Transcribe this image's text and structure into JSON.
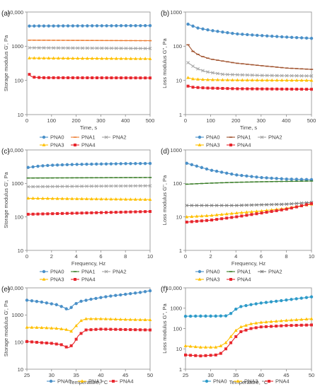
{
  "chart_data": [
    {
      "panel_label": "(a)",
      "type": "line",
      "xlabel": "Time, s",
      "ylabel": "Storage modulus G', Pa",
      "xlim": [
        0,
        500
      ],
      "ylim": [
        10,
        10000
      ],
      "yscale": "log",
      "xticks": [
        "0",
        "100",
        "200",
        "300",
        "400",
        "500"
      ],
      "yticks": [
        "10",
        "100",
        "1000",
        "10,000"
      ],
      "legend_placement": "bottom",
      "series": [
        {
          "name": "PNA0",
          "x": [
            10,
            500
          ],
          "y": [
            3900,
            4000
          ],
          "color": "#4a90c8",
          "marker": "circle"
        },
        {
          "name": "PNA1",
          "x": [
            10,
            500
          ],
          "y": [
            1500,
            1450
          ],
          "color": "#ed7d31",
          "marker": "dash"
        },
        {
          "name": "PNA2",
          "x": [
            10,
            500
          ],
          "y": [
            900,
            860
          ],
          "color": "#a5a5a5",
          "marker": "cross"
        },
        {
          "name": "PNA3",
          "x": [
            10,
            500
          ],
          "y": [
            450,
            430
          ],
          "color": "#ffc000",
          "marker": "triangle"
        },
        {
          "name": "PNA4",
          "x": [
            10,
            20,
            60,
            500
          ],
          "y": [
            150,
            125,
            120,
            118
          ],
          "color": "#e8262d",
          "marker": "square"
        }
      ]
    },
    {
      "panel_label": "(b)",
      "type": "line",
      "xlabel": "Time, s",
      "ylabel": "Loss modulus G'', Pa",
      "xlim": [
        0,
        500
      ],
      "ylim": [
        1,
        1000
      ],
      "yscale": "log",
      "xticks": [
        "0",
        "100",
        "200",
        "300",
        "400",
        "500"
      ],
      "yticks": [
        "1",
        "10",
        "100",
        "1000"
      ],
      "legend_placement": "bottom",
      "series": [
        {
          "name": "PNA0",
          "x": [
            10,
            50,
            100,
            200,
            300,
            400,
            500
          ],
          "y": [
            440,
            340,
            290,
            230,
            205,
            185,
            170
          ],
          "color": "#4a90c8",
          "marker": "circle"
        },
        {
          "name": "PNA1",
          "x": [
            10,
            30,
            60,
            100,
            200,
            300,
            400,
            500
          ],
          "y": [
            110,
            70,
            52,
            42,
            32,
            27,
            23,
            21
          ],
          "color": "#a0522d",
          "marker": "dash"
        },
        {
          "name": "PNA2",
          "x": [
            10,
            40,
            80,
            150,
            300,
            500
          ],
          "y": [
            33,
            23,
            18,
            15,
            14,
            13.5
          ],
          "color": "#a5a5a5",
          "marker": "cross"
        },
        {
          "name": "PNA3",
          "x": [
            10,
            30,
            80,
            200,
            500
          ],
          "y": [
            12,
            11,
            10.5,
            10.2,
            10
          ],
          "color": "#ffc000",
          "marker": "triangle"
        },
        {
          "name": "PNA4",
          "x": [
            10,
            30,
            80,
            200,
            500
          ],
          "y": [
            6.8,
            6.3,
            6,
            5.7,
            5.5
          ],
          "color": "#e8262d",
          "marker": "square"
        }
      ]
    },
    {
      "panel_label": "(c)",
      "type": "line",
      "xlabel": "Frequency, Hz",
      "ylabel": "Storage modulus G', Pa",
      "xlim": [
        0,
        10
      ],
      "ylim": [
        10,
        10000
      ],
      "yscale": "log",
      "xticks": [
        "0",
        "2",
        "4",
        "6",
        "8",
        "10"
      ],
      "yticks": [
        "10",
        "100",
        "1000",
        "10,000"
      ],
      "legend_placement": "bottom",
      "series": [
        {
          "name": "PNA0",
          "x": [
            0.1,
            1,
            2,
            4,
            6,
            8,
            10
          ],
          "y": [
            3000,
            3300,
            3500,
            3700,
            3800,
            3900,
            3950
          ],
          "color": "#4a90c8",
          "marker": "circle"
        },
        {
          "name": "PNA1",
          "x": [
            0.1,
            10
          ],
          "y": [
            1450,
            1500
          ],
          "color": "#3a7d28",
          "marker": "dash"
        },
        {
          "name": "PNA2",
          "x": [
            0.1,
            10
          ],
          "y": [
            800,
            850
          ],
          "color": "#a5a5a5",
          "marker": "cross"
        },
        {
          "name": "PNA3",
          "x": [
            0.1,
            10
          ],
          "y": [
            360,
            330
          ],
          "color": "#ffc000",
          "marker": "triangle"
        },
        {
          "name": "PNA4",
          "x": [
            0.1,
            10
          ],
          "y": [
            120,
            145
          ],
          "color": "#e8262d",
          "marker": "square"
        }
      ]
    },
    {
      "panel_label": "(d)",
      "type": "line",
      "xlabel": "Frequency, Hz",
      "ylabel": "Loss modulus G'', Pa",
      "xlim": [
        0,
        10
      ],
      "ylim": [
        1,
        1000
      ],
      "yscale": "log",
      "xticks": [
        "0",
        "2",
        "4",
        "6",
        "8",
        "10"
      ],
      "yticks": [
        "1",
        "10",
        "100",
        "1000"
      ],
      "legend_placement": "bottom",
      "series": [
        {
          "name": "PNA0",
          "x": [
            0.1,
            1,
            2,
            4,
            6,
            8,
            10
          ],
          "y": [
            400,
            320,
            250,
            180,
            150,
            135,
            130
          ],
          "color": "#4a90c8",
          "marker": "circle"
        },
        {
          "name": "PNA1",
          "x": [
            0.1,
            2,
            4,
            6,
            8,
            10
          ],
          "y": [
            95,
            102,
            108,
            112,
            115,
            118
          ],
          "color": "#3a7d28",
          "marker": "dash"
        },
        {
          "name": "PNA2",
          "x": [
            0.1,
            2,
            4,
            6,
            8,
            10
          ],
          "y": [
            22,
            22,
            22,
            23,
            24,
            27
          ],
          "color": "#7f7f7f",
          "marker": "cross"
        },
        {
          "name": "PNA3",
          "x": [
            0.1,
            2,
            4,
            6,
            8,
            10
          ],
          "y": [
            10,
            11,
            13,
            15,
            18,
            24
          ],
          "color": "#ffc000",
          "marker": "triangle"
        },
        {
          "name": "PNA4",
          "x": [
            0.1,
            2,
            4,
            6,
            8,
            10
          ],
          "y": [
            7,
            8,
            10,
            13,
            17,
            25
          ],
          "color": "#e8262d",
          "marker": "square"
        }
      ]
    },
    {
      "panel_label": "(e)",
      "type": "line",
      "xlabel": "Temperature, °C",
      "ylabel": "Storage modulus G', Pa",
      "xlim": [
        25,
        50
      ],
      "ylim": [
        10,
        10000
      ],
      "yscale": "log",
      "xticks": [
        "25",
        "30",
        "35",
        "40",
        "45",
        "50"
      ],
      "yticks": [
        "10",
        "100",
        "1000",
        "10,000"
      ],
      "legend_placement": "bottom",
      "series": [
        {
          "name": "PNA0",
          "x": [
            25,
            28,
            31,
            32.5,
            33.5,
            34.5,
            36,
            38,
            40,
            42,
            45,
            48,
            50
          ],
          "y": [
            3500,
            3000,
            2400,
            1900,
            1500,
            2400,
            3200,
            3800,
            4400,
            5000,
            5800,
            6800,
            7800
          ],
          "color": "#4a90c8",
          "marker": "circle"
        },
        {
          "name": "PNA3",
          "x": [
            25,
            28,
            31,
            33,
            34,
            35,
            36,
            37,
            40,
            45,
            50
          ],
          "y": [
            350,
            340,
            320,
            290,
            250,
            400,
            620,
            720,
            720,
            680,
            660
          ],
          "color": "#ffc000",
          "marker": "triangle"
        },
        {
          "name": "PNA4",
          "x": [
            25,
            28,
            30,
            32,
            33.5,
            34.5,
            35.5,
            37,
            40,
            45,
            50
          ],
          "y": [
            105,
            95,
            90,
            80,
            60,
            90,
            180,
            280,
            300,
            290,
            280
          ],
          "color": "#e8262d",
          "marker": "square"
        }
      ]
    },
    {
      "panel_label": "(f)",
      "type": "line",
      "xlabel": "Temperature, °C",
      "ylabel": "Loss modulus G'', Pa",
      "xlim": [
        25,
        50
      ],
      "ylim": [
        1,
        10000
      ],
      "yscale": "log",
      "xticks": [
        "25",
        "30",
        "35",
        "40",
        "45",
        "50"
      ],
      "yticks": [
        "1",
        "10",
        "100",
        "1000",
        "10,000"
      ],
      "legend_placement": "bottom",
      "series": [
        {
          "name": "PNA0",
          "x": [
            25,
            28,
            31,
            33,
            34,
            35,
            36,
            38,
            40,
            43,
            46,
            50
          ],
          "y": [
            400,
            410,
            410,
            420,
            550,
            900,
            1200,
            1500,
            1800,
            2200,
            2700,
            3600
          ],
          "color": "#2e9bc9",
          "marker": "circle"
        },
        {
          "name": "PNA3",
          "x": [
            25,
            28,
            31,
            32,
            33,
            34,
            35,
            36,
            38,
            40,
            45,
            50
          ],
          "y": [
            14,
            12,
            12,
            14,
            20,
            40,
            80,
            120,
            170,
            200,
            250,
            300
          ],
          "color": "#ffc000",
          "marker": "triangle"
        },
        {
          "name": "PNA4",
          "x": [
            25,
            28,
            31,
            32,
            33,
            34,
            35,
            36,
            38,
            40,
            45,
            50
          ],
          "y": [
            5,
            4.5,
            5,
            6,
            10,
            20,
            40,
            70,
            100,
            120,
            140,
            150
          ],
          "color": "#e8262d",
          "marker": "square"
        }
      ]
    }
  ]
}
